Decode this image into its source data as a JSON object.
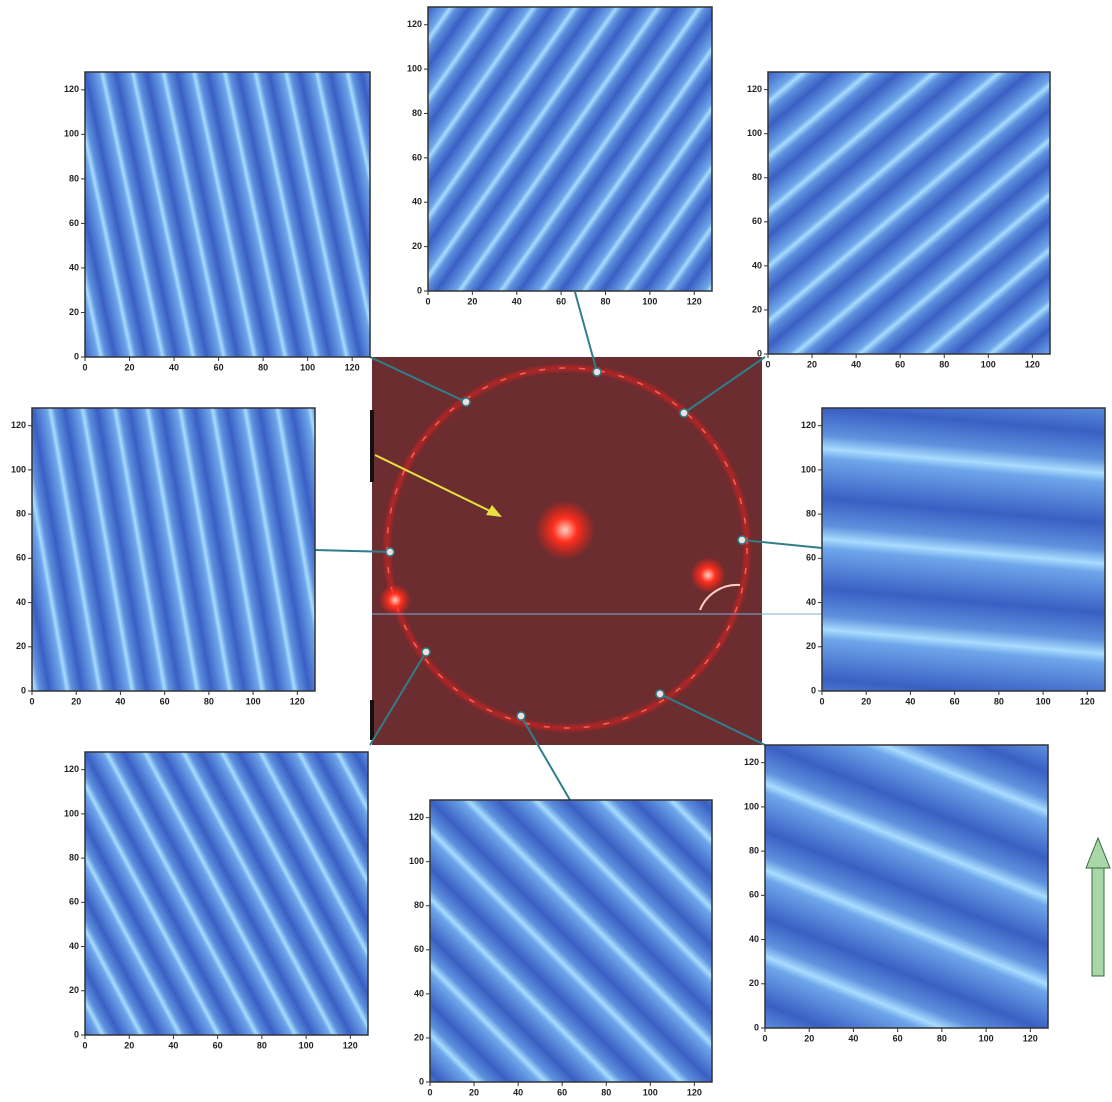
{
  "panels": [
    {
      "xlim": [
        0,
        128
      ],
      "ylim": [
        0,
        128
      ],
      "xticks": [
        0,
        20,
        40,
        60,
        80,
        100,
        120
      ],
      "yticks": [
        0,
        20,
        40,
        60,
        80,
        100,
        120
      ]
    },
    {
      "xlim": [
        0,
        128
      ],
      "ylim": [
        0,
        128
      ],
      "xticks": [
        0,
        20,
        40,
        60,
        80,
        100,
        120
      ],
      "yticks": [
        0,
        20,
        40,
        60,
        80,
        100,
        120
      ]
    },
    {
      "xlim": [
        0,
        128
      ],
      "ylim": [
        0,
        128
      ],
      "xticks": [
        0,
        20,
        40,
        60,
        80,
        100,
        120
      ],
      "yticks": [
        0,
        20,
        40,
        60,
        80,
        100,
        120
      ]
    },
    {
      "xlim": [
        0,
        128
      ],
      "ylim": [
        0,
        128
      ],
      "xticks": [
        0,
        20,
        40,
        60,
        80,
        100,
        120
      ],
      "yticks": [
        0,
        20,
        40,
        60,
        80,
        100,
        120
      ]
    },
    {
      "xlim": [
        0,
        128
      ],
      "ylim": [
        0,
        128
      ],
      "xticks": [
        0,
        20,
        40,
        60,
        80,
        100,
        120
      ],
      "yticks": [
        0,
        20,
        40,
        60,
        80,
        100,
        120
      ]
    },
    {
      "xlim": [
        0,
        128
      ],
      "ylim": [
        0,
        128
      ],
      "xticks": [
        0,
        20,
        40,
        60,
        80,
        100,
        120
      ],
      "yticks": [
        0,
        20,
        40,
        60,
        80,
        100,
        120
      ]
    },
    {
      "xlim": [
        0,
        128
      ],
      "ylim": [
        0,
        128
      ],
      "xticks": [
        0,
        20,
        40,
        60,
        80,
        100,
        120
      ],
      "yticks": [
        0,
        20,
        40,
        60,
        80,
        100,
        120
      ]
    },
    {
      "xlim": [
        0,
        128
      ],
      "ylim": [
        0,
        128
      ],
      "xticks": [
        0,
        20,
        40,
        60,
        80,
        100,
        120
      ],
      "yticks": [
        0,
        20,
        40,
        60,
        80,
        100,
        120
      ]
    }
  ]
}
